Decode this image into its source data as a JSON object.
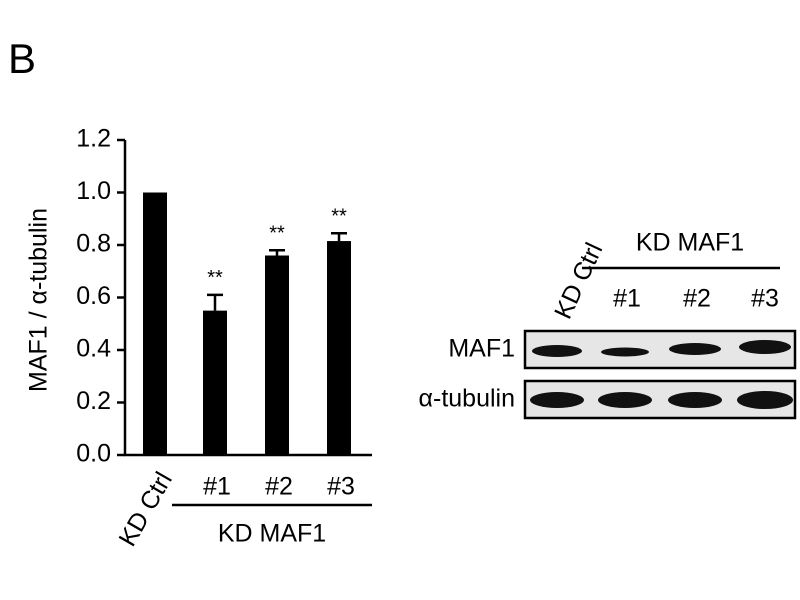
{
  "panel_label": "B",
  "chart_data": {
    "type": "bar",
    "y_label": "MAF1 / α-tubulin",
    "categories": [
      "KD Ctrl",
      "#1",
      "#2",
      "#3"
    ],
    "values": [
      1.0,
      0.55,
      0.76,
      0.815
    ],
    "errors": [
      null,
      0.06,
      0.02,
      0.03
    ],
    "annotations": [
      null,
      "**",
      "**",
      "**"
    ],
    "group_label": "KD MAF1",
    "color": "#000000",
    "ylim": [
      0,
      1.2
    ],
    "yticks": [
      {
        "value": 0,
        "label": "0.0"
      },
      0.2,
      0.4,
      0.6,
      0.8,
      {
        "value": 1,
        "label": "1.0"
      },
      1.2
    ]
  },
  "blot": {
    "lane_labels": [
      "KD Ctrl",
      "#1",
      "#2",
      "#3"
    ],
    "group_label": "KD MAF1",
    "rows": [
      "MAF1",
      "α-tubulin"
    ]
  }
}
